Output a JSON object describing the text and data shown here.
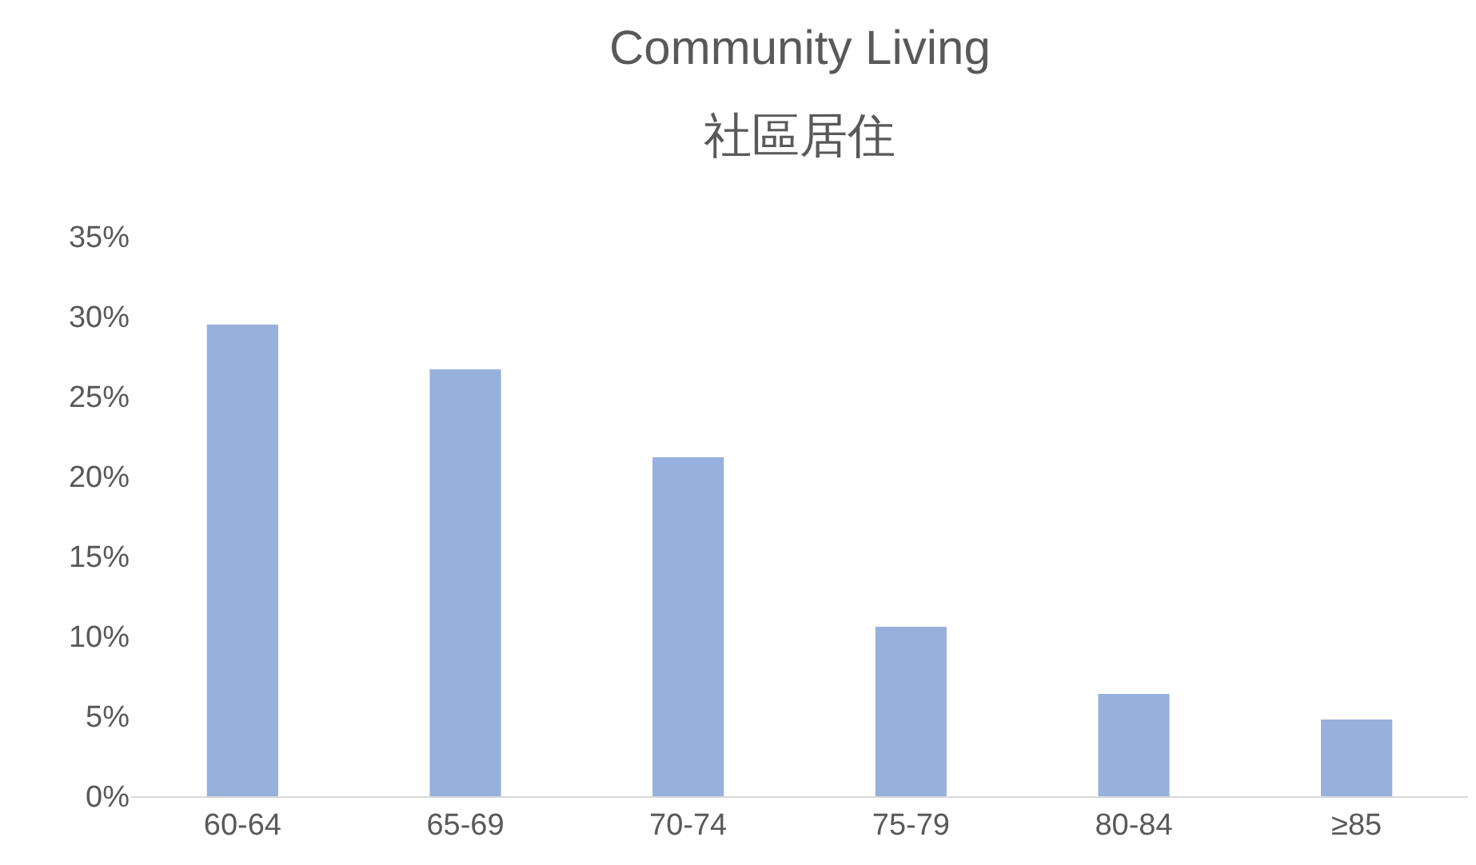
{
  "chart_data": {
    "type": "bar",
    "title": "Community Living",
    "subtitle": "社區居住",
    "categories": [
      "60-64",
      "65-69",
      "70-74",
      "75-79",
      "80-84",
      "≥85"
    ],
    "values": [
      29.5,
      26.7,
      21.2,
      10.6,
      6.4,
      4.8
    ],
    "color": "#98b0dc",
    "ylim": [
      0,
      35
    ],
    "yticks": [
      {
        "value": 0,
        "label": "0%"
      },
      {
        "value": 5,
        "label": "5%"
      },
      {
        "value": 10,
        "label": "10%"
      },
      {
        "value": 15,
        "label": "15%"
      },
      {
        "value": 20,
        "label": "20%"
      },
      {
        "value": 25,
        "label": "25%"
      },
      {
        "value": 30,
        "label": "30%"
      },
      {
        "value": 35,
        "label": "35%"
      }
    ],
    "grid": false
  }
}
